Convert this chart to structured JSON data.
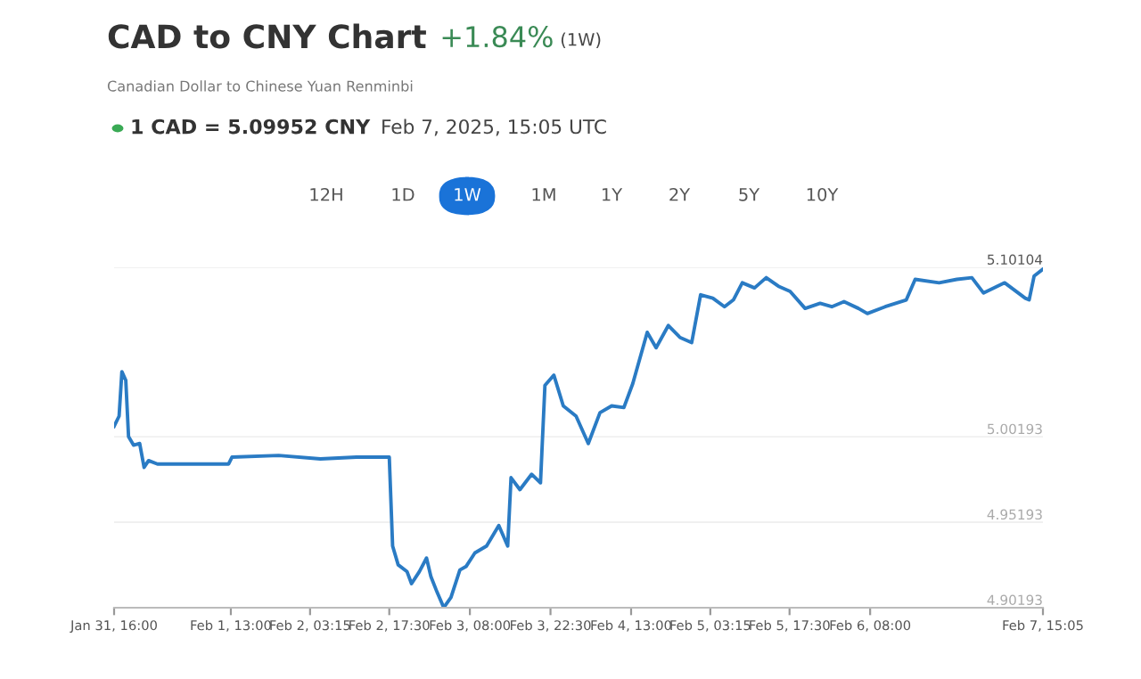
{
  "chart_data": {
    "type": "line",
    "title": "CAD to CNY Chart",
    "subtitle": "Canadian Dollar to Chinese Yuan Renminbi",
    "annotations": [
      "+1.84%",
      "(1W)",
      "1 CAD = 5.09952 CNY",
      "Feb 7, 2025, 15:05 UTC",
      "12H",
      "1D",
      "1W",
      "1M",
      "1Y",
      "2Y",
      "5Y",
      "10Y"
    ],
    "series": [
      {
        "color": "#2a7bc4",
        "x": [
          "2025-01-31T16:00",
          "2025-01-31T16:54",
          "2025-01-31T17:24",
          "2025-01-31T18:06",
          "2025-01-31T18:36",
          "2025-01-31T19:30",
          "2025-01-31T20:36",
          "2025-01-31T21:24",
          "2025-01-31T22:12",
          "2025-01-31T23:48",
          "2025-02-01T12:36",
          "2025-02-01T13:12",
          "2025-02-01T21:36",
          "2025-02-02T05:06",
          "2025-02-02T11:36",
          "2025-02-02T17:30",
          "2025-02-02T18:06",
          "2025-02-02T19:06",
          "2025-02-02T20:42",
          "2025-02-02T21:30",
          "2025-02-02T22:54",
          "2025-02-03T00:12",
          "2025-02-03T01:00",
          "2025-02-03T02:06",
          "2025-02-03T03:18",
          "2025-02-03T04:36",
          "2025-02-03T06:12",
          "2025-02-03T07:18",
          "2025-02-03T08:54",
          "2025-02-03T11:00",
          "2025-02-03T13:12",
          "2025-02-03T14:48",
          "2025-02-03T15:24",
          "2025-02-03T17:00",
          "2025-02-03T19:06",
          "2025-02-03T20:42",
          "2025-02-03T21:30",
          "2025-02-03T23:06",
          "2025-02-04T00:48",
          "2025-02-04T03:06",
          "2025-02-04T05:18",
          "2025-02-04T07:24",
          "2025-02-04T09:30",
          "2025-02-04T11:42",
          "2025-02-04T13:18",
          "2025-02-04T15:54",
          "2025-02-04T17:30",
          "2025-02-04T19:42",
          "2025-02-04T21:48",
          "2025-02-04T23:54",
          "2025-02-05T01:30",
          "2025-02-05T03:42",
          "2025-02-05T05:48",
          "2025-02-05T07:24",
          "2025-02-05T09:00",
          "2025-02-05T11:12",
          "2025-02-05T13:18",
          "2025-02-05T15:30",
          "2025-02-05T17:36",
          "2025-02-05T20:18",
          "2025-02-05T23:00",
          "2025-02-06T01:06",
          "2025-02-06T03:18",
          "2025-02-06T05:54",
          "2025-02-06T07:30",
          "2025-02-06T10:42",
          "2025-02-06T14:30",
          "2025-02-06T16:06",
          "2025-02-06T20:24",
          "2025-02-06T23:36",
          "2025-02-07T02:18",
          "2025-02-07T04:24",
          "2025-02-07T08:12",
          "2025-02-07T11:54",
          "2025-02-07T12:36",
          "2025-02-07T13:30",
          "2025-02-07T15:05"
        ],
        "values": [
          5.008,
          5.014,
          5.04,
          5.035,
          5.002,
          4.997,
          4.998,
          4.984,
          4.988,
          4.986,
          4.986,
          4.99,
          4.991,
          4.989,
          4.99,
          4.99,
          4.938,
          4.927,
          4.923,
          4.916,
          4.923,
          4.931,
          4.92,
          4.911,
          4.902,
          4.908,
          4.924,
          4.926,
          4.934,
          4.938,
          4.95,
          4.938,
          4.978,
          4.971,
          4.98,
          4.975,
          5.032,
          5.038,
          5.02,
          5.014,
          4.998,
          5.016,
          5.02,
          5.019,
          5.033,
          5.063,
          5.054,
          5.067,
          5.06,
          5.057,
          5.085,
          5.083,
          5.078,
          5.082,
          5.092,
          5.089,
          5.095,
          5.09,
          5.087,
          5.077,
          5.08,
          5.078,
          5.081,
          5.077,
          5.074,
          5.078,
          5.082,
          5.094,
          5.092,
          5.094,
          5.095,
          5.086,
          5.092,
          5.083,
          5.082,
          5.096,
          5.1
        ]
      }
    ],
    "xlim": [
      "2025-01-31T16:00",
      "2025-02-07T15:05"
    ],
    "xticks": [
      {
        "value": "2025-01-31T16:00",
        "label": "Jan 31, 16:00"
      },
      {
        "value": "2025-02-01T13:00",
        "label": "Feb 1, 13:00"
      },
      {
        "value": "2025-02-02T03:15",
        "label": "Feb 2, 03:15"
      },
      {
        "value": "2025-02-02T17:30",
        "label": "Feb 2, 17:30"
      },
      {
        "value": "2025-02-03T08:00",
        "label": "Feb 3, 08:00"
      },
      {
        "value": "2025-02-03T22:30",
        "label": "Feb 3, 22:30"
      },
      {
        "value": "2025-02-04T13:00",
        "label": "Feb 4, 13:00"
      },
      {
        "value": "2025-02-05T03:15",
        "label": "Feb 5, 03:15"
      },
      {
        "value": "2025-02-05T17:30",
        "label": "Feb 5, 17:30"
      },
      {
        "value": "2025-02-06T08:00",
        "label": "Feb 6, 08:00"
      },
      {
        "value": "2025-02-07T15:05",
        "label": "Feb 7, 15:05"
      }
    ],
    "ylim": [
      4.90193,
      5.10104
    ],
    "yticks": [
      4.90193,
      4.95193,
      5.00193,
      5.10104
    ],
    "grid": "y",
    "legend": false,
    "marker": "none",
    "line_style": "solid"
  }
}
